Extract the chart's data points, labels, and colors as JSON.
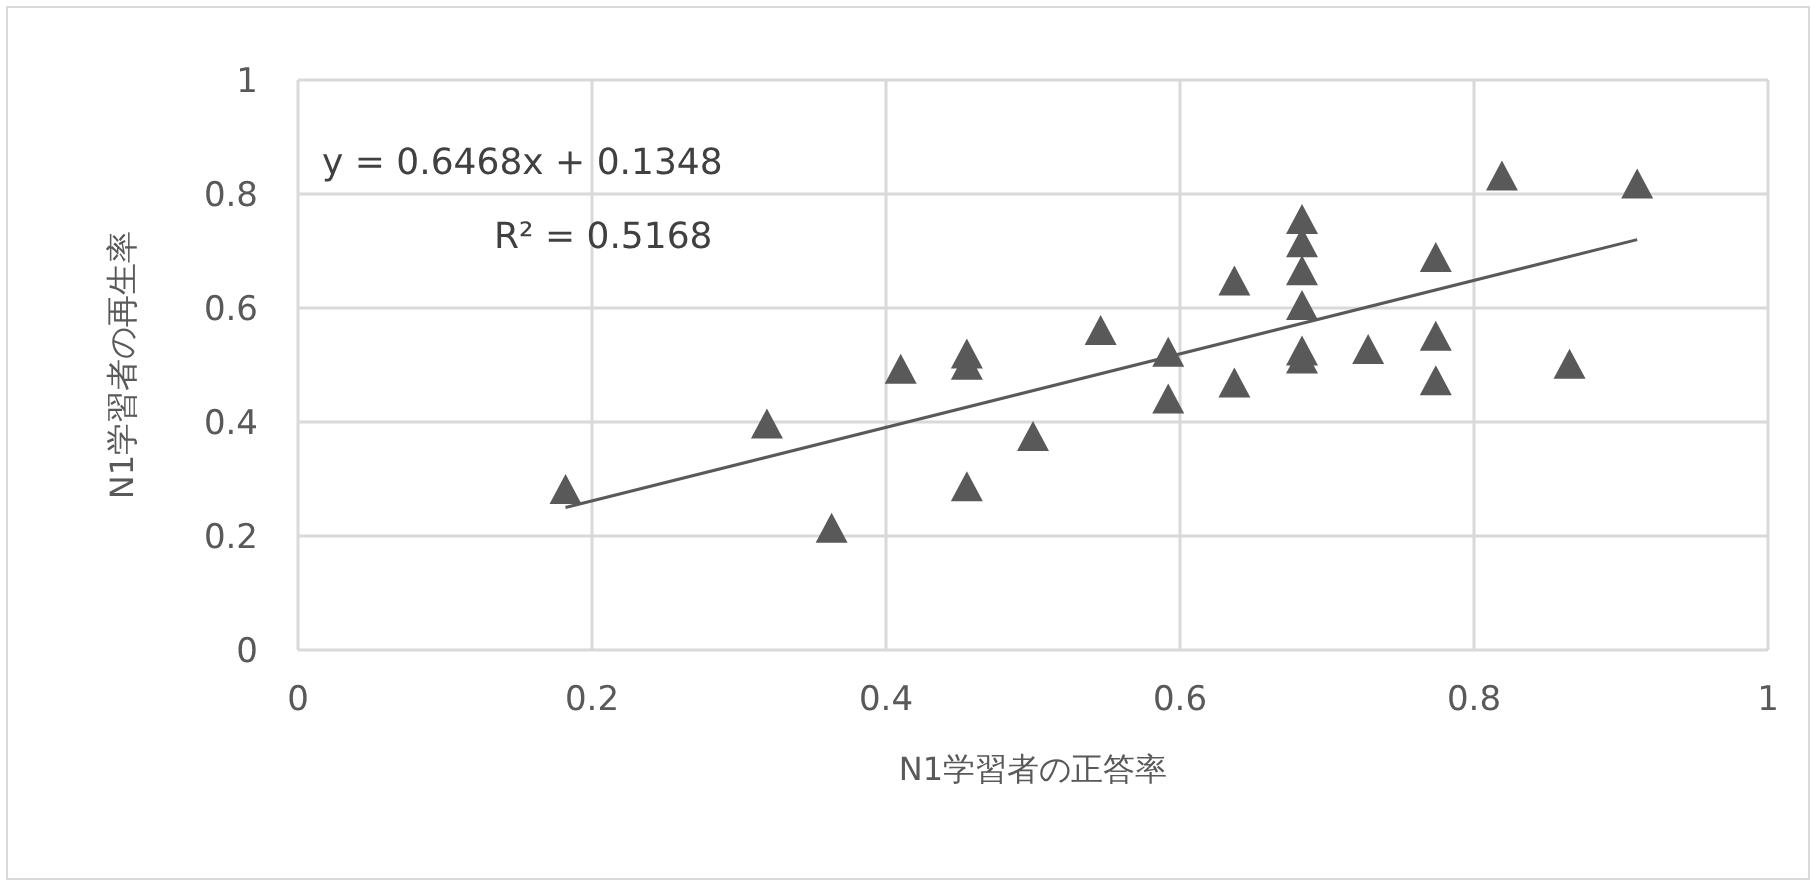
{
  "chart_data": {
    "type": "scatter",
    "xlabel": "N1学習者の正答率",
    "ylabel": "N1学習者の再生率",
    "xlim": [
      0,
      1
    ],
    "ylim": [
      0,
      1
    ],
    "xticks": [
      0,
      0.2,
      0.4,
      0.6,
      0.8,
      1
    ],
    "yticks": [
      0,
      0.2,
      0.4,
      0.6,
      0.8,
      1
    ],
    "grid": true,
    "legend": false,
    "marker": "triangle",
    "annotations": [
      "y = 0.6468x + 0.1348",
      "R² = 0.5168"
    ],
    "series": [
      {
        "color": "#595959",
        "x": [
          0.182,
          0.319,
          0.363,
          0.41,
          0.455,
          0.455,
          0.455,
          0.5,
          0.546,
          0.592,
          0.592,
          0.637,
          0.637,
          0.683,
          0.683,
          0.683,
          0.683,
          0.683,
          0.683,
          0.728,
          0.774,
          0.774,
          0.774,
          0.819,
          0.865,
          0.911
        ],
        "values": [
          0.277,
          0.392,
          0.209,
          0.488,
          0.515,
          0.495,
          0.282,
          0.37,
          0.556,
          0.518,
          0.436,
          0.643,
          0.464,
          0.751,
          0.71,
          0.661,
          0.6,
          0.52,
          0.506,
          0.523,
          0.684,
          0.546,
          0.468,
          0.827,
          0.497,
          0.813
        ]
      },
      {
        "type": "line",
        "color": "#595959",
        "marker": "none",
        "x": [
          0.182,
          0.911
        ],
        "values": [
          0.25,
          0.72
        ]
      }
    ]
  }
}
